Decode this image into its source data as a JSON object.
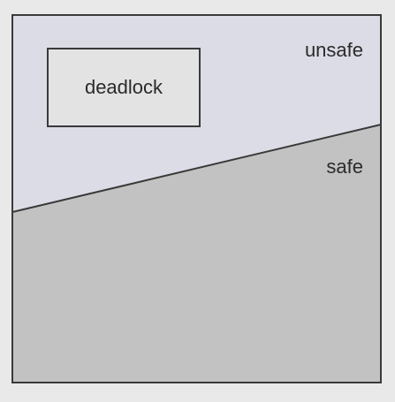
{
  "regions": {
    "unsafe_label": "unsafe",
    "safe_label": "safe",
    "deadlock_label": "deadlock"
  },
  "colors": {
    "background": "#e9e9e9",
    "unsafe_fill": "#dcdce6",
    "safe_fill": "#c2c2c2",
    "deadlock_fill": "#e3e3e3",
    "border": "#3a3a3a"
  }
}
